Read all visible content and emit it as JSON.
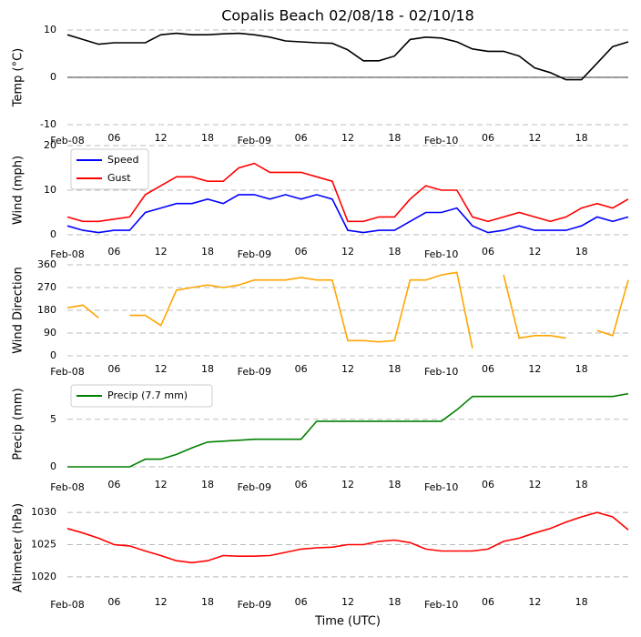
{
  "chart_data": [
    {
      "type": "line",
      "title": "Copalis Beach 02/08/18 - 02/10/18",
      "ylabel": "Temp (°C)",
      "color": "#000000",
      "x": [
        0,
        2,
        4,
        6,
        8,
        10,
        12,
        14,
        16,
        18,
        20,
        22,
        24,
        26,
        28,
        30,
        32,
        34,
        36,
        38,
        40,
        42,
        44,
        46,
        48,
        50,
        52,
        54,
        56,
        58,
        60,
        62,
        64,
        66,
        68,
        70,
        72
      ],
      "values": [
        9,
        8,
        7,
        7.3,
        7.3,
        7.3,
        9,
        9.3,
        9,
        9,
        9.2,
        9.3,
        9,
        8.5,
        7.7,
        7.5,
        7.3,
        7.2,
        5.8,
        3.5,
        3.5,
        4.5,
        8,
        8.5,
        8.3,
        7.5,
        6,
        5.5,
        5.5,
        4.5,
        2,
        1,
        -0.5,
        -0.5,
        3,
        6.5,
        7.5
      ],
      "xlim": [
        0,
        72
      ],
      "ylim": [
        -10,
        10
      ],
      "yticks": [
        -10,
        0,
        10
      ],
      "grid": true,
      "xticks": [
        {
          "value": 0,
          "label": "Feb-08"
        },
        {
          "value": 6,
          "label": "06"
        },
        {
          "value": 12,
          "label": "12"
        },
        {
          "value": 18,
          "label": "18"
        },
        {
          "value": 24,
          "label": "Feb-09"
        },
        {
          "value": 30,
          "label": "06"
        },
        {
          "value": 36,
          "label": "12"
        },
        {
          "value": 42,
          "label": "18"
        },
        {
          "value": 48,
          "label": "Feb-10"
        },
        {
          "value": 54,
          "label": "06"
        },
        {
          "value": 60,
          "label": "12"
        },
        {
          "value": 66,
          "label": "18"
        }
      ]
    },
    {
      "type": "line",
      "ylabel": "Wind (mph)",
      "legend": "upper left",
      "x": [
        0,
        2,
        4,
        6,
        8,
        10,
        12,
        14,
        16,
        18,
        20,
        22,
        24,
        26,
        28,
        30,
        32,
        34,
        36,
        38,
        40,
        42,
        44,
        46,
        48,
        50,
        52,
        54,
        56,
        58,
        60,
        62,
        64,
        66,
        68,
        70,
        72
      ],
      "series": [
        {
          "name": "Speed",
          "color": "#0000ff",
          "values": [
            2,
            1,
            0.5,
            1,
            1,
            5,
            6,
            7,
            7,
            8,
            7,
            9,
            9,
            8,
            9,
            8,
            9,
            8,
            1,
            0.5,
            1,
            1,
            3,
            5,
            5,
            6,
            2,
            0.5,
            1,
            2,
            1,
            1,
            1,
            2,
            4,
            3,
            4
          ]
        },
        {
          "name": "Gust",
          "color": "#ff0000",
          "values": [
            4,
            3,
            3,
            3.5,
            4,
            9,
            11,
            13,
            13,
            12,
            12,
            15,
            16,
            14,
            14,
            14,
            13,
            12,
            3,
            3,
            4,
            4,
            8,
            11,
            10,
            10,
            4,
            3,
            4,
            5,
            4,
            3,
            4,
            6,
            7,
            6,
            8
          ]
        }
      ],
      "xlim": [
        0,
        72
      ],
      "ylim": [
        0,
        20
      ],
      "yticks": [
        0,
        10,
        20
      ],
      "grid": true,
      "xticks": [
        {
          "value": 0,
          "label": "Feb-08"
        },
        {
          "value": 6,
          "label": "06"
        },
        {
          "value": 12,
          "label": "12"
        },
        {
          "value": 18,
          "label": "18"
        },
        {
          "value": 24,
          "label": "Feb-09"
        },
        {
          "value": 30,
          "label": "06"
        },
        {
          "value": 36,
          "label": "12"
        },
        {
          "value": 42,
          "label": "18"
        },
        {
          "value": 48,
          "label": "Feb-10"
        },
        {
          "value": 54,
          "label": "06"
        },
        {
          "value": 60,
          "label": "12"
        },
        {
          "value": 66,
          "label": "18"
        }
      ]
    },
    {
      "type": "line",
      "ylabel": "Wind Direction",
      "color": "#ffa500",
      "x": [
        0,
        2,
        4,
        6,
        8,
        10,
        12,
        14,
        16,
        18,
        20,
        22,
        24,
        26,
        28,
        30,
        32,
        34,
        36,
        38,
        40,
        42,
        44,
        46,
        48,
        50,
        52,
        54,
        56,
        58,
        60,
        62,
        64,
        66,
        68,
        70,
        72
      ],
      "values": [
        190,
        200,
        150,
        null,
        160,
        160,
        120,
        260,
        270,
        280,
        270,
        280,
        300,
        300,
        300,
        310,
        300,
        300,
        60,
        60,
        55,
        60,
        300,
        300,
        320,
        330,
        30,
        null,
        320,
        70,
        80,
        80,
        70,
        null,
        100,
        80,
        300
      ],
      "xlim": [
        0,
        72
      ],
      "ylim": [
        0,
        360
      ],
      "yticks": [
        0,
        90,
        180,
        270,
        360
      ],
      "grid": true,
      "xticks": [
        {
          "value": 0,
          "label": "Feb-08"
        },
        {
          "value": 6,
          "label": "06"
        },
        {
          "value": 12,
          "label": "12"
        },
        {
          "value": 18,
          "label": "18"
        },
        {
          "value": 24,
          "label": "Feb-09"
        },
        {
          "value": 30,
          "label": "06"
        },
        {
          "value": 36,
          "label": "12"
        },
        {
          "value": 42,
          "label": "18"
        },
        {
          "value": 48,
          "label": "Feb-10"
        },
        {
          "value": 54,
          "label": "06"
        },
        {
          "value": 60,
          "label": "12"
        },
        {
          "value": 66,
          "label": "18"
        }
      ]
    },
    {
      "type": "line",
      "ylabel": "Precip (mm)",
      "legend": "upper left",
      "x": [
        0,
        2,
        4,
        6,
        8,
        10,
        12,
        14,
        16,
        18,
        20,
        22,
        24,
        26,
        28,
        30,
        32,
        34,
        36,
        38,
        40,
        42,
        44,
        46,
        48,
        50,
        52,
        54,
        56,
        58,
        60,
        62,
        64,
        66,
        68,
        70,
        72
      ],
      "series": [
        {
          "name": "Precip (7.7 mm)",
          "color": "#008000",
          "values": [
            0,
            0,
            0,
            0,
            0,
            0.8,
            0.8,
            1.3,
            2,
            2.6,
            2.7,
            2.8,
            2.9,
            2.9,
            2.9,
            2.9,
            4.8,
            4.8,
            4.8,
            4.8,
            4.8,
            4.8,
            4.8,
            4.8,
            4.8,
            6,
            7.4,
            7.4,
            7.4,
            7.4,
            7.4,
            7.4,
            7.4,
            7.4,
            7.4,
            7.4,
            7.7
          ]
        }
      ],
      "xlim": [
        0,
        72
      ],
      "ylim": [
        0,
        9
      ],
      "yticks": [
        0,
        5
      ],
      "grid": true,
      "xticks": [
        {
          "value": 0,
          "label": "Feb-08"
        },
        {
          "value": 6,
          "label": "06"
        },
        {
          "value": 12,
          "label": "12"
        },
        {
          "value": 18,
          "label": "18"
        },
        {
          "value": 24,
          "label": "Feb-09"
        },
        {
          "value": 30,
          "label": "06"
        },
        {
          "value": 36,
          "label": "12"
        },
        {
          "value": 42,
          "label": "18"
        },
        {
          "value": 48,
          "label": "Feb-10"
        },
        {
          "value": 54,
          "label": "06"
        },
        {
          "value": 60,
          "label": "12"
        },
        {
          "value": 66,
          "label": "18"
        }
      ]
    },
    {
      "type": "line",
      "ylabel": "Altimeter (hPa)",
      "xlabel": "Time (UTC)",
      "color": "#ff0000",
      "x": [
        0,
        2,
        4,
        6,
        8,
        10,
        12,
        14,
        16,
        18,
        20,
        22,
        24,
        26,
        28,
        30,
        32,
        34,
        36,
        38,
        40,
        42,
        44,
        46,
        48,
        50,
        52,
        54,
        56,
        58,
        60,
        62,
        64,
        66,
        68,
        70,
        72
      ],
      "values": [
        1027.5,
        1026.8,
        1026,
        1025,
        1024.8,
        1024,
        1023.3,
        1022.5,
        1022.2,
        1022.5,
        1023.3,
        1023.2,
        1023.2,
        1023.3,
        1023.8,
        1024.3,
        1024.5,
        1024.6,
        1025,
        1025,
        1025.5,
        1025.7,
        1025.3,
        1024.3,
        1024,
        1024,
        1024,
        1024.3,
        1025.5,
        1026,
        1026.8,
        1027.5,
        1028.5,
        1029.3,
        1030,
        1029.3,
        1027.3
      ],
      "xlim": [
        0,
        72
      ],
      "ylim": [
        1018,
        1031
      ],
      "yticks": [
        1020,
        1025,
        1030
      ],
      "grid": true,
      "xticks": [
        {
          "value": 0,
          "label": "Feb-08"
        },
        {
          "value": 6,
          "label": "06"
        },
        {
          "value": 12,
          "label": "12"
        },
        {
          "value": 18,
          "label": "18"
        },
        {
          "value": 24,
          "label": "Feb-09"
        },
        {
          "value": 30,
          "label": "06"
        },
        {
          "value": 36,
          "label": "12"
        },
        {
          "value": 42,
          "label": "18"
        },
        {
          "value": 48,
          "label": "Feb-10"
        },
        {
          "value": 54,
          "label": "06"
        },
        {
          "value": 60,
          "label": "12"
        },
        {
          "value": 66,
          "label": "18"
        }
      ]
    }
  ]
}
